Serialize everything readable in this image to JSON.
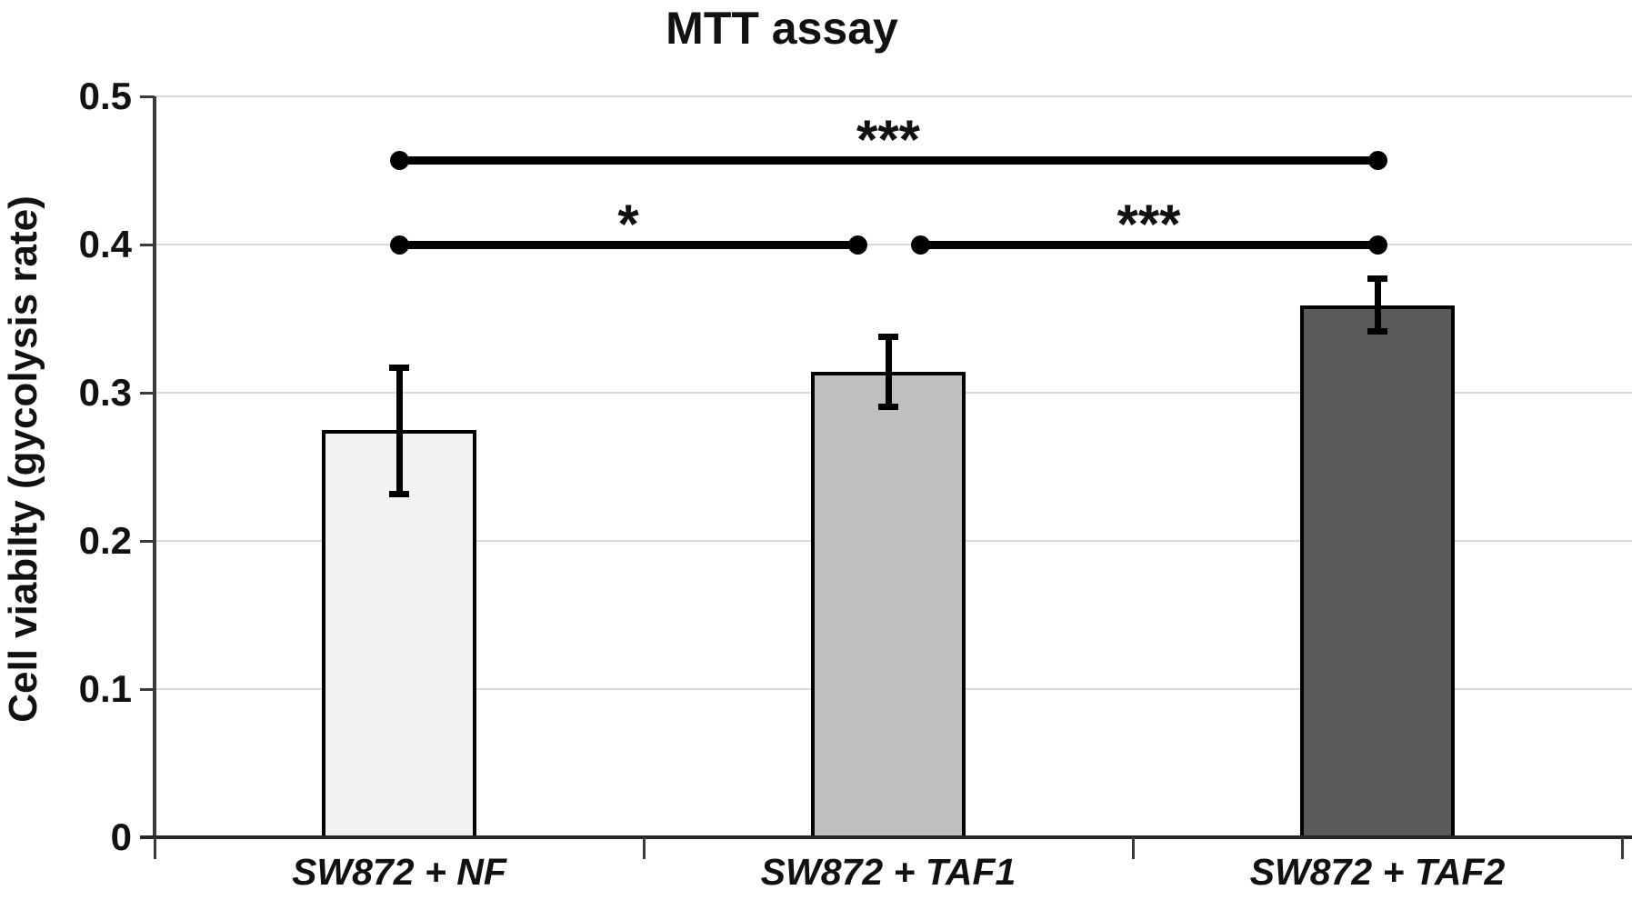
{
  "chart_data": {
    "type": "bar",
    "title": "MTT assay",
    "ylabel": "Cell viabilty (gycolysis rate)",
    "xlabel": "",
    "categories": [
      "SW872 + NF",
      "SW872 + TAF1",
      "SW872 + TAF2"
    ],
    "values": [
      0.275,
      0.314,
      0.359
    ],
    "error_upper": [
      0.317,
      0.338,
      0.377
    ],
    "error_lower": [
      0.232,
      0.291,
      0.342
    ],
    "ylim": [
      0,
      0.5
    ],
    "yticks": [
      0,
      0.1,
      0.2,
      0.3,
      0.4,
      0.5
    ],
    "ytick_labels": [
      "0",
      "0.1",
      "0.2",
      "0.3",
      "0.4",
      "0.5"
    ],
    "grid": true,
    "legend": "none",
    "bar_colors": [
      "#f2f2f2",
      "#bfbfbf",
      "#595959"
    ],
    "bar_border_color": "#000000",
    "significance": [
      {
        "from": 0,
        "to": 2,
        "y": 0.457,
        "label": "***",
        "inset_from": 0,
        "inset_to": 0
      },
      {
        "from": 0,
        "to": 1,
        "y": 0.4,
        "label": "*",
        "inset_from": 0,
        "inset_to": 34
      },
      {
        "from": 1,
        "to": 2,
        "y": 0.4,
        "label": "***",
        "inset_from": 35,
        "inset_to": 0
      }
    ],
    "colors": {
      "gridline": "#d9d9d9",
      "axis": "#3a3a3a",
      "baseline": "#262626",
      "text": "#111111"
    }
  }
}
